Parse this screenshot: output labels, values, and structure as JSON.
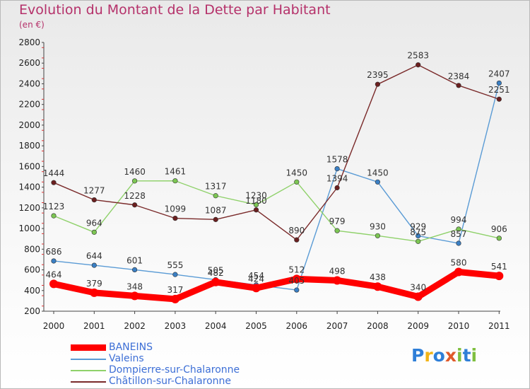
{
  "title": "Evolution du Montant de la Dette par Habitant",
  "subtitle": "(en €)",
  "logo": {
    "text": "Proxiti",
    "letters": [
      {
        "char": "P",
        "color": "#2f7fd8"
      },
      {
        "char": "r",
        "color": "#f2b417"
      },
      {
        "char": "o",
        "color": "#2f7fd8"
      },
      {
        "char": "x",
        "color": "#e05a2a"
      },
      {
        "char": "i",
        "color": "#7fbf3f"
      },
      {
        "char": "t",
        "color": "#2f7fd8"
      },
      {
        "char": "i",
        "color": "#7fbf3f"
      }
    ]
  },
  "chart_data": {
    "type": "line",
    "title": "Evolution du Montant de la Dette par Habitant",
    "subtitle": "(en €)",
    "xlabel": "",
    "ylabel": "",
    "categories": [
      "2000",
      "2001",
      "2002",
      "2003",
      "2004",
      "2005",
      "2006",
      "2007",
      "2008",
      "2009",
      "2010",
      "2011"
    ],
    "ylim": [
      200,
      2800
    ],
    "yticks": [
      200,
      400,
      600,
      800,
      1000,
      1200,
      1400,
      1600,
      1800,
      2000,
      2200,
      2400,
      2600,
      2800
    ],
    "grid": false,
    "legend_position": "bottom-left",
    "series": [
      {
        "name": "BANEINS",
        "color": "#ff0000",
        "marker_color": "#ff0000",
        "width": "thick",
        "values": [
          464,
          379,
          348,
          317,
          482,
          424,
          512,
          498,
          438,
          340,
          580,
          541
        ]
      },
      {
        "name": "Valeins",
        "color": "#5a9bd5",
        "marker_color": "#3a7fc4",
        "width": "thin",
        "values": [
          686,
          644,
          601,
          555,
          505,
          454,
          405,
          1578,
          1450,
          929,
          857,
          2407
        ]
      },
      {
        "name": "Dompierre-sur-Chalaronne",
        "color": "#8fd16a",
        "marker_color": "#7cc653",
        "width": "thin",
        "values": [
          1123,
          964,
          1460,
          1461,
          1317,
          1230,
          1450,
          979,
          930,
          875,
          994,
          906
        ]
      },
      {
        "name": "Châtillon-sur-Chalaronne",
        "color": "#7a2a2a",
        "marker_color": "#6b1f1f",
        "width": "thin",
        "values": [
          1444,
          1277,
          1228,
          1099,
          1087,
          1180,
          890,
          1394,
          2395,
          2583,
          2384,
          2251
        ]
      }
    ]
  }
}
